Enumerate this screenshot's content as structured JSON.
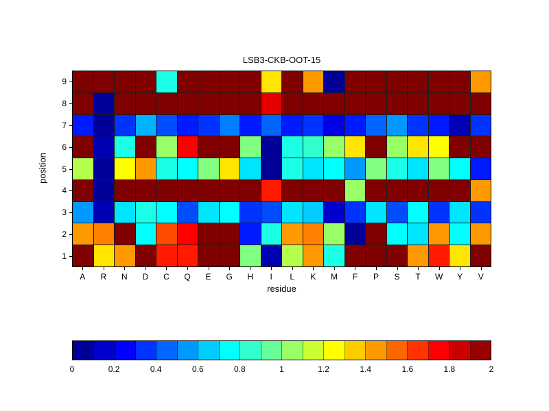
{
  "figure": {
    "background": "#ffffff",
    "text_color": "#000000",
    "grid_line_color": "#1a1a1a"
  },
  "chart_data": {
    "type": "heatmap",
    "title": "LSB3-CKB-OOT-15",
    "xlabel": "residue",
    "ylabel": "position",
    "x_categories": [
      "A",
      "R",
      "N",
      "D",
      "C",
      "Q",
      "E",
      "G",
      "H",
      "I",
      "L",
      "K",
      "M",
      "F",
      "P",
      "S",
      "T",
      "W",
      "Y",
      "V"
    ],
    "y_categories_top_to_bottom": [
      "9",
      "8",
      "7",
      "6",
      "5",
      "4",
      "3",
      "2",
      "1"
    ],
    "colormap": "jet",
    "color_range": [
      0,
      2
    ],
    "colorbar_ticks": [
      "0",
      "0.2",
      "0.4",
      "0.6",
      "0.8",
      "1",
      "1.2",
      "1.4",
      "1.6",
      "1.8",
      "2"
    ],
    "colorbar_tick_values": [
      0,
      0.2,
      0.4,
      0.6,
      0.8,
      1,
      1.2,
      1.4,
      1.6,
      1.8,
      2
    ],
    "values_rows_top_to_bottom": [
      [
        2,
        2,
        2,
        2,
        0.8,
        2,
        2,
        2,
        2,
        1.3,
        2,
        1.45,
        0.05,
        2,
        2,
        2,
        2,
        2,
        2,
        1.45
      ],
      [
        2,
        0.05,
        2,
        2,
        2,
        2,
        2,
        2,
        2,
        1.8,
        2,
        2,
        2,
        2,
        2,
        2,
        2,
        2,
        2,
        2
      ],
      [
        0.3,
        0.05,
        0.35,
        0.6,
        0.4,
        0.3,
        0.35,
        0.5,
        0.3,
        0.45,
        0.3,
        0.35,
        0.2,
        0.3,
        0.45,
        0.55,
        0.35,
        0.3,
        0.1,
        0.35
      ],
      [
        2,
        0.1,
        0.8,
        2,
        1.05,
        1.75,
        2,
        2,
        1.0,
        0.05,
        0.8,
        0.85,
        1.05,
        1.3,
        2,
        1.05,
        1.3,
        1.25,
        2,
        2
      ],
      [
        1.1,
        0.05,
        1.25,
        1.45,
        0.8,
        0.75,
        1.0,
        1.3,
        0.7,
        0.05,
        0.8,
        0.7,
        0.75,
        0.55,
        1.0,
        0.8,
        0.7,
        1.0,
        0.75,
        0.3
      ],
      [
        2,
        0.05,
        2,
        2,
        2,
        2,
        2,
        2,
        2,
        1.7,
        2,
        2,
        2,
        1.05,
        2,
        2,
        2,
        2,
        2,
        1.45
      ],
      [
        0.55,
        0.1,
        0.7,
        0.8,
        0.75,
        0.4,
        0.7,
        0.75,
        0.35,
        0.4,
        0.7,
        0.65,
        0.15,
        0.35,
        0.7,
        0.4,
        0.75,
        0.35,
        0.7,
        0.35
      ],
      [
        1.45,
        1.5,
        2,
        0.75,
        1.6,
        1.75,
        2,
        2,
        0.3,
        0.8,
        1.45,
        1.5,
        1.05,
        0.05,
        2,
        0.75,
        0.7,
        1.45,
        0.75,
        1.45
      ],
      [
        2,
        1.3,
        1.45,
        2,
        1.7,
        1.7,
        2,
        2,
        1.0,
        0.1,
        1.1,
        1.45,
        0.8,
        2,
        2,
        2,
        1.45,
        1.7,
        1.3,
        2
      ]
    ]
  }
}
